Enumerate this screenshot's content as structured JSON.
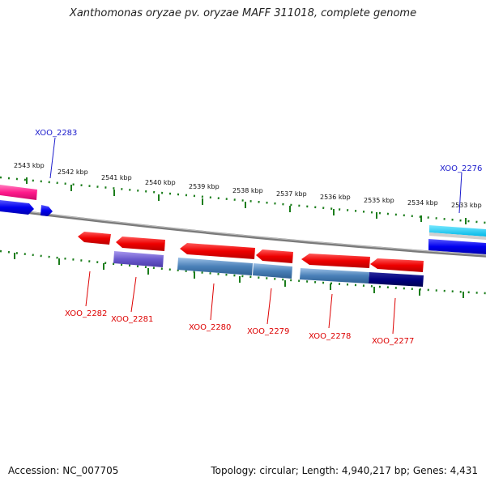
{
  "title": "Xanthomonas oryzae pv. oryzae MAFF 311018, complete genome",
  "footer": {
    "accession": "Accession: NC_007705",
    "summary": "Topology: circular; Length: 4,940,217 bp; Genes: 4,431"
  },
  "kbp_labels": [
    "2543 kbp",
    "2542 kbp",
    "2541 kbp",
    "2540 kbp",
    "2539 kbp",
    "2538 kbp",
    "2537 kbp",
    "2536 kbp",
    "2535 kbp",
    "2534 kbp",
    "2533 kbp"
  ],
  "genes": [
    {
      "id": "XOO_2283",
      "strand": "forward",
      "color": "#1a1acc"
    },
    {
      "id": "XOO_2282",
      "strand": "reverse",
      "color": "#dd0000"
    },
    {
      "id": "XOO_2281",
      "strand": "reverse",
      "color": "#dd0000"
    },
    {
      "id": "XOO_2280",
      "strand": "reverse",
      "color": "#dd0000"
    },
    {
      "id": "XOO_2279",
      "strand": "reverse",
      "color": "#dd0000"
    },
    {
      "id": "XOO_2278",
      "strand": "reverse",
      "color": "#dd0000"
    },
    {
      "id": "XOO_2277",
      "strand": "reverse",
      "color": "#dd0000"
    },
    {
      "id": "XOO_2276",
      "strand": "forward",
      "color": "#1a1acc"
    }
  ]
}
